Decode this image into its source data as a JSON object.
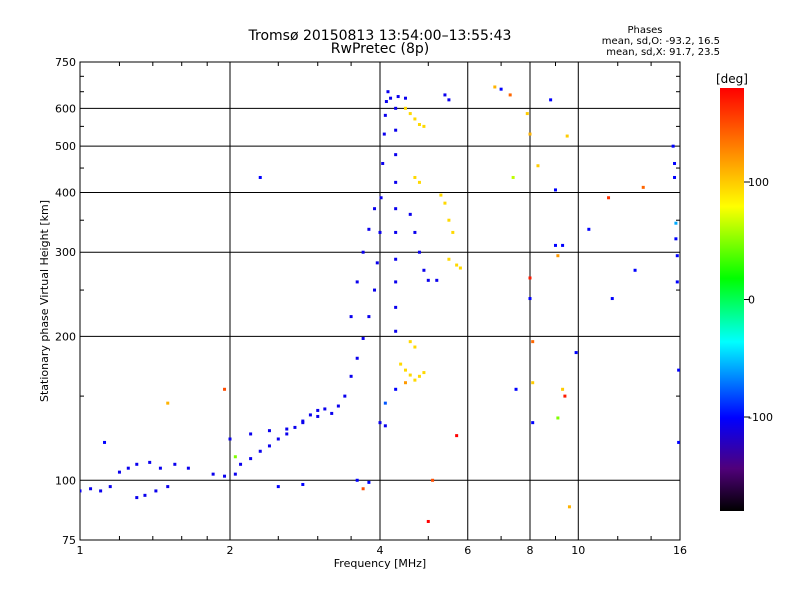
{
  "chart_data": {
    "type": "scatter",
    "title": "Tromsø 20150813 13:54:00–13:55:43",
    "subtitle": "RwPretec (8p)",
    "xlabel": "Frequency [MHz]",
    "ylabel": "Stationary phase Virtual Height [km]",
    "x_scale": "log",
    "y_scale": "log",
    "xlim": [
      1,
      16
    ],
    "ylim": [
      75,
      750
    ],
    "x_ticks": [
      1,
      2,
      4,
      6,
      8,
      10,
      16
    ],
    "y_ticks": [
      75,
      100,
      200,
      300,
      400,
      500,
      600,
      750
    ],
    "x_grid": [
      2,
      4,
      6,
      8,
      10
    ],
    "y_grid": [
      100,
      200,
      300,
      400,
      500,
      600
    ],
    "grid": true,
    "phases": {
      "title": "Phases",
      "line_o": "mean, sd,O: -93.2, 16.5",
      "line_x": "mean, sd,X:  91.7, 23.5"
    },
    "colorbar": {
      "label": "[deg]",
      "ticks": [
        "100",
        "0",
        "-100"
      ],
      "tick_values": [
        100,
        0,
        -100
      ],
      "range": [
        -180,
        180
      ],
      "palette": [
        "#000000",
        "#50007a",
        "#0000ff",
        "#00ffff",
        "#00ff00",
        "#ffff00",
        "#ff8000",
        "#ff0000"
      ]
    },
    "series": [
      {
        "kind": "trace",
        "color_phase": -105,
        "points": [
          [
            1.0,
            95
          ],
          [
            1.05,
            96
          ],
          [
            1.1,
            95
          ],
          [
            1.15,
            97
          ],
          [
            1.2,
            104
          ],
          [
            1.25,
            106
          ],
          [
            1.3,
            108
          ],
          [
            1.38,
            109
          ],
          [
            1.45,
            106
          ],
          [
            1.55,
            108
          ],
          [
            1.65,
            106
          ],
          [
            1.3,
            92
          ],
          [
            1.35,
            93
          ],
          [
            1.42,
            95
          ],
          [
            1.5,
            97
          ],
          [
            1.85,
            103
          ],
          [
            1.95,
            102
          ],
          [
            2.05,
            103
          ],
          [
            2.1,
            108
          ],
          [
            2.2,
            111
          ],
          [
            2.3,
            115
          ],
          [
            2.4,
            118
          ],
          [
            2.5,
            122
          ],
          [
            2.6,
            125
          ],
          [
            2.7,
            129
          ],
          [
            2.8,
            133
          ],
          [
            2.9,
            137
          ],
          [
            3.0,
            140
          ],
          [
            3.1,
            141
          ],
          [
            3.2,
            138
          ],
          [
            3.3,
            143
          ],
          [
            3.4,
            150
          ],
          [
            3.5,
            165
          ],
          [
            3.6,
            180
          ],
          [
            3.7,
            198
          ],
          [
            3.8,
            220
          ],
          [
            3.9,
            250
          ],
          [
            3.95,
            285
          ],
          [
            4.0,
            330
          ],
          [
            4.02,
            390
          ],
          [
            4.05,
            460
          ],
          [
            4.08,
            530
          ],
          [
            4.1,
            580
          ],
          [
            4.12,
            620
          ],
          [
            4.15,
            650
          ],
          [
            2.0,
            122
          ],
          [
            2.2,
            125
          ],
          [
            2.4,
            127
          ],
          [
            2.6,
            128
          ],
          [
            2.8,
            132
          ],
          [
            3.0,
            136
          ],
          [
            3.5,
            220
          ],
          [
            3.6,
            260
          ],
          [
            3.7,
            300
          ],
          [
            3.8,
            335
          ],
          [
            3.9,
            370
          ],
          [
            4.2,
            630
          ],
          [
            4.35,
            635
          ],
          [
            4.5,
            630
          ],
          [
            4.3,
            600
          ],
          [
            4.3,
            540
          ],
          [
            4.3,
            480
          ],
          [
            4.3,
            420
          ],
          [
            4.3,
            370
          ],
          [
            4.3,
            330
          ],
          [
            4.3,
            290
          ],
          [
            4.3,
            260
          ],
          [
            4.3,
            230
          ],
          [
            4.3,
            205
          ],
          [
            4.6,
            360
          ],
          [
            4.7,
            330
          ],
          [
            4.8,
            300
          ],
          [
            4.9,
            275
          ],
          [
            5.0,
            262
          ],
          [
            5.2,
            262
          ],
          [
            4.1,
            130
          ],
          [
            4.0,
            132
          ],
          [
            5.4,
            640
          ],
          [
            5.5,
            625
          ]
        ]
      },
      {
        "kind": "trace",
        "color_phase": 95,
        "points": [
          [
            4.5,
            600
          ],
          [
            4.6,
            585
          ],
          [
            4.7,
            570
          ],
          [
            4.8,
            555
          ],
          [
            4.9,
            550
          ],
          [
            4.4,
            175
          ],
          [
            4.5,
            170
          ],
          [
            4.6,
            166
          ],
          [
            4.7,
            162
          ],
          [
            4.8,
            165
          ],
          [
            4.9,
            168
          ],
          [
            4.7,
            430
          ],
          [
            4.8,
            420
          ],
          [
            5.3,
            395
          ],
          [
            5.4,
            380
          ],
          [
            5.5,
            350
          ],
          [
            5.6,
            330
          ],
          [
            5.5,
            290
          ],
          [
            5.7,
            282
          ],
          [
            5.8,
            278
          ],
          [
            4.6,
            195
          ],
          [
            4.7,
            190
          ]
        ]
      },
      {
        "kind": "echoes",
        "points": [
          [
            1.12,
            120,
            -100
          ],
          [
            1.5,
            145,
            110
          ],
          [
            1.95,
            155,
            150
          ],
          [
            2.05,
            112,
            40
          ],
          [
            2.3,
            430,
            -100
          ],
          [
            2.5,
            97,
            -100
          ],
          [
            2.8,
            98,
            -100
          ],
          [
            3.6,
            100,
            -100
          ],
          [
            3.7,
            96,
            150
          ],
          [
            3.8,
            99,
            -100
          ],
          [
            4.1,
            145,
            -80
          ],
          [
            4.3,
            155,
            -100
          ],
          [
            4.5,
            160,
            120
          ],
          [
            5.0,
            82,
            180
          ],
          [
            5.1,
            100,
            150
          ],
          [
            5.7,
            124,
            180
          ],
          [
            6.8,
            665,
            110
          ],
          [
            7.0,
            658,
            -100
          ],
          [
            7.3,
            640,
            140
          ],
          [
            7.4,
            430,
            60
          ],
          [
            7.5,
            155,
            -100
          ],
          [
            7.9,
            585,
            100
          ],
          [
            8.0,
            530,
            110
          ],
          [
            8.0,
            265,
            170
          ],
          [
            8.0,
            240,
            -100
          ],
          [
            8.1,
            195,
            140
          ],
          [
            8.1,
            160,
            100
          ],
          [
            8.1,
            132,
            -100
          ],
          [
            8.3,
            455,
            100
          ],
          [
            8.8,
            625,
            -100
          ],
          [
            9.0,
            405,
            -100
          ],
          [
            9.0,
            310,
            -100
          ],
          [
            9.1,
            295,
            120
          ],
          [
            9.1,
            135,
            40
          ],
          [
            9.3,
            310,
            -100
          ],
          [
            9.3,
            155,
            100
          ],
          [
            9.4,
            150,
            170
          ],
          [
            9.5,
            525,
            100
          ],
          [
            9.6,
            88,
            110
          ],
          [
            9.9,
            185,
            -100
          ],
          [
            10.5,
            335,
            -100
          ],
          [
            11.5,
            390,
            160
          ],
          [
            11.7,
            240,
            -100
          ],
          [
            13.0,
            275,
            -100
          ],
          [
            13.5,
            410,
            140
          ],
          [
            15.5,
            500,
            -100
          ],
          [
            15.6,
            460,
            -100
          ],
          [
            15.6,
            430,
            -100
          ],
          [
            15.7,
            345,
            -60
          ],
          [
            15.7,
            320,
            -100
          ],
          [
            15.8,
            295,
            -100
          ],
          [
            15.8,
            260,
            -100
          ],
          [
            15.9,
            170,
            -100
          ],
          [
            15.9,
            120,
            -100
          ]
        ]
      }
    ]
  }
}
